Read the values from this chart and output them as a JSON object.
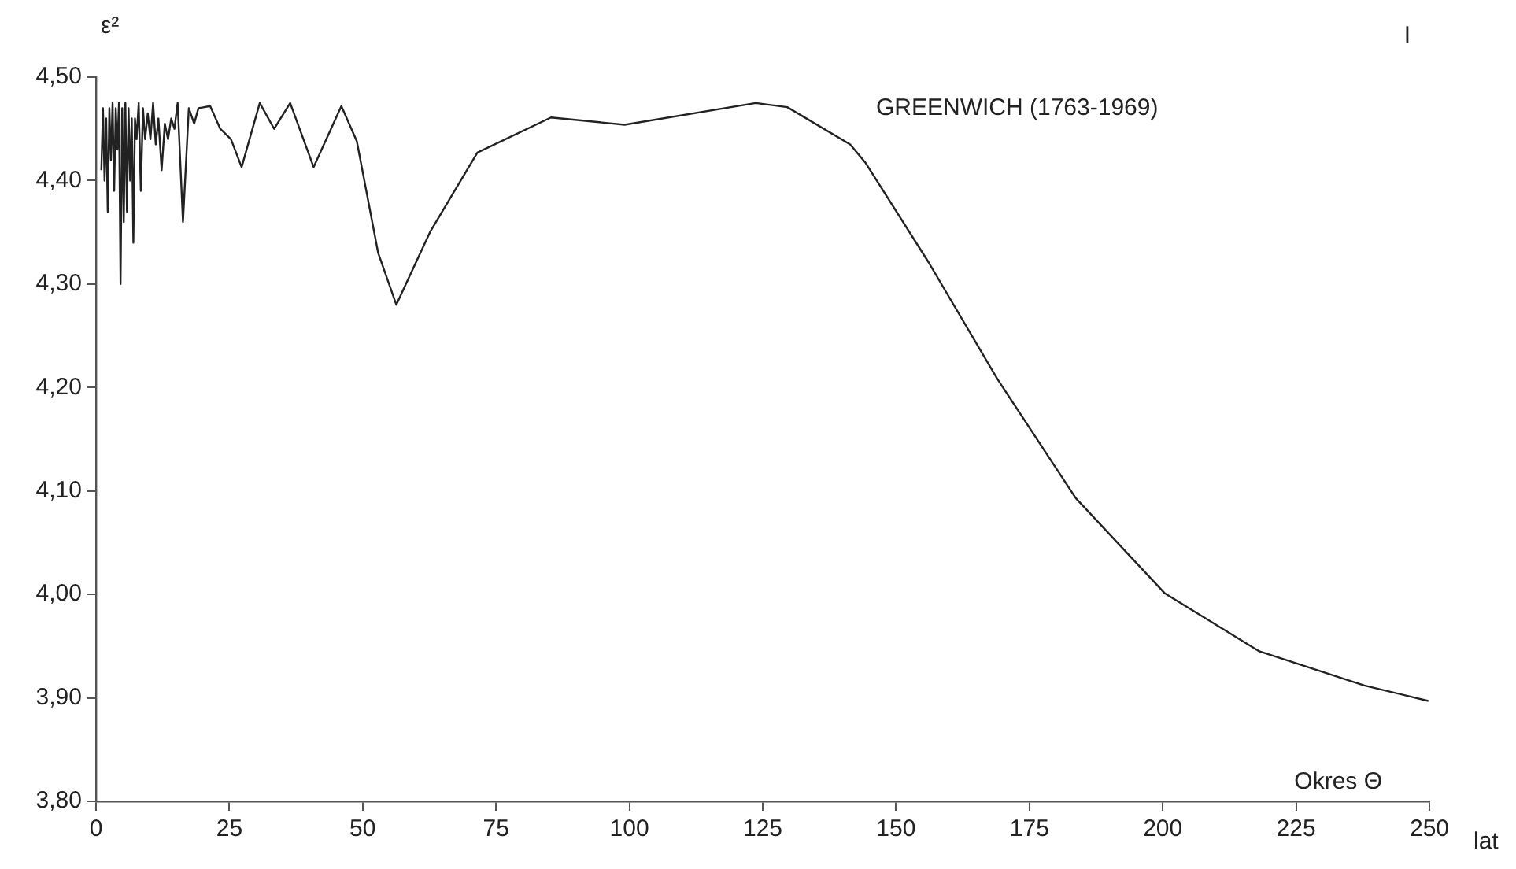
{
  "chart_data": {
    "type": "line",
    "title": "GREENWICH (1763-1969)",
    "xlabel": "Okres Θ",
    "ylabel": "ε²",
    "annotations": [
      "I",
      "lat"
    ],
    "xlim": [
      0,
      250
    ],
    "xticks": [
      0,
      25,
      50,
      75,
      100,
      125,
      150,
      175,
      200,
      225,
      250
    ],
    "ylim": [
      3.8,
      4.5
    ],
    "yticks": [
      {
        "value": 3.8,
        "label": "3,80"
      },
      {
        "value": 3.9,
        "label": "3,90"
      },
      {
        "value": 4.0,
        "label": "4,00"
      },
      {
        "value": 4.1,
        "label": "4,10"
      },
      {
        "value": 4.2,
        "label": "4,20"
      },
      {
        "value": 4.3,
        "label": "4,30"
      },
      {
        "value": 4.4,
        "label": "4,40"
      },
      {
        "value": 4.5,
        "label": "4,50"
      }
    ],
    "grid": false,
    "legend": false,
    "marker": "none",
    "line_style": "solid",
    "series": [
      {
        "color": "#222222",
        "x": [
          1.0,
          1.3,
          1.6,
          1.9,
          2.2,
          2.5,
          2.8,
          3.1,
          3.4,
          3.7,
          4.0,
          4.3,
          4.6,
          4.9,
          5.2,
          5.5,
          5.8,
          6.1,
          6.4,
          6.7,
          7.0,
          7.3,
          7.6,
          8.0,
          8.4,
          8.8,
          9.2,
          9.7,
          10.2,
          10.7,
          11.2,
          11.7,
          12.3,
          12.9,
          13.5,
          14.1,
          14.7,
          15.3,
          16.3,
          17.4,
          18.4,
          19.2,
          21.4,
          23.3,
          25.3,
          27.3,
          30.7,
          33.4,
          36.4,
          40.8,
          46.0,
          48.9,
          52.9,
          56.3,
          62.7,
          71.5,
          85.3,
          99.1,
          123.7,
          129.6,
          141.4,
          144.3,
          156.1,
          168.9,
          183.7,
          200.4,
          218.1,
          237.8,
          249.8
        ],
        "values": [
          4.41,
          4.47,
          4.4,
          4.46,
          4.37,
          4.47,
          4.42,
          4.475,
          4.39,
          4.47,
          4.43,
          4.475,
          4.3,
          4.47,
          4.36,
          4.475,
          4.37,
          4.47,
          4.4,
          4.46,
          4.34,
          4.46,
          4.44,
          4.475,
          4.39,
          4.47,
          4.44,
          4.465,
          4.44,
          4.475,
          4.435,
          4.46,
          4.41,
          4.455,
          4.44,
          4.46,
          4.45,
          4.475,
          4.36,
          4.47,
          4.455,
          4.47,
          4.472,
          4.45,
          4.44,
          4.413,
          4.475,
          4.45,
          4.475,
          4.413,
          4.472,
          4.438,
          4.33,
          4.28,
          4.351,
          4.427,
          4.461,
          4.454,
          4.475,
          4.471,
          4.435,
          4.417,
          4.321,
          4.209,
          4.093,
          4.001,
          3.945,
          3.912,
          3.897
        ]
      }
    ]
  }
}
